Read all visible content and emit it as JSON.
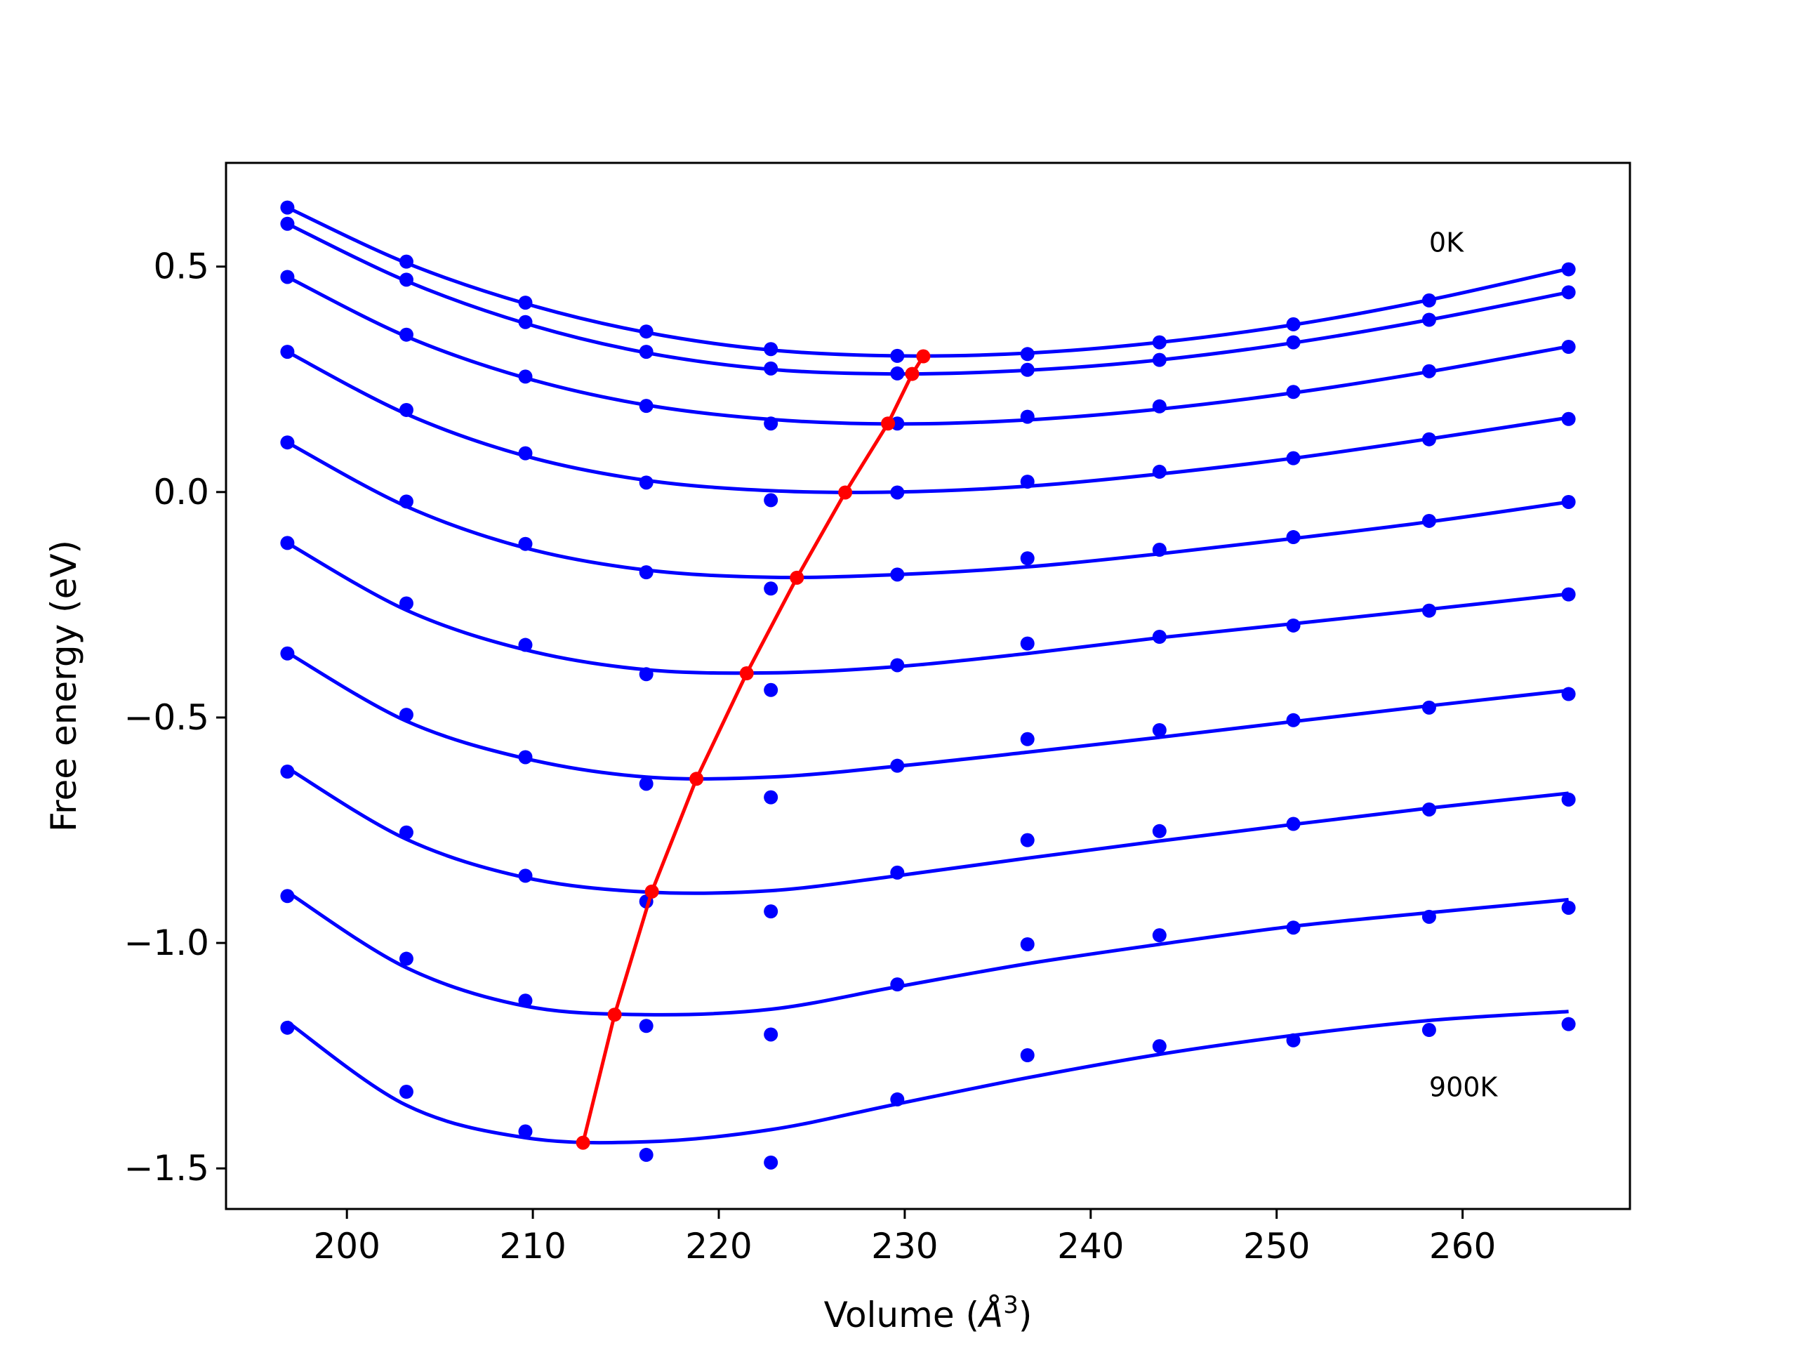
{
  "chart_data": {
    "type": "line",
    "title": "",
    "xlabel": "Volume (Å³)",
    "xlabel_parts": {
      "prefix": "Volume (",
      "symbol": "Å",
      "exponent": "3",
      "suffix": ")"
    },
    "ylabel": "Free energy (eV)",
    "xlim": [
      193.5,
      269
    ],
    "ylim": [
      -1.59,
      0.73
    ],
    "xticks": [
      200,
      210,
      220,
      230,
      240,
      250,
      260
    ],
    "xtick_labels": [
      "200",
      "210",
      "220",
      "230",
      "240",
      "250",
      "260"
    ],
    "yticks": [
      0.5,
      0.0,
      -0.5,
      -1.0,
      -1.5
    ],
    "ytick_labels": [
      "0.5",
      "0.0",
      "−0.5",
      "−1.0",
      "−1.5"
    ],
    "grid": false,
    "legend": "none",
    "annotations": [
      {
        "text": "0K",
        "x": 258.2,
        "y": 0.555
      },
      {
        "text": "900K",
        "x": 258.2,
        "y": -1.318
      }
    ],
    "x": [
      196.8,
      203.2,
      209.6,
      216.1,
      222.8,
      229.6,
      236.6,
      243.7,
      250.9,
      258.2,
      265.7
    ],
    "colors": {
      "points": "#0000ff",
      "fits": "#0000ff",
      "minima": "#ff0000"
    },
    "series": [
      {
        "points": [
          0.631,
          0.511,
          0.42,
          0.356,
          0.317,
          0.302,
          0.306,
          0.332,
          0.372,
          0.425,
          0.494
        ],
        "fit": [
          [
            196.8,
            0.631
          ],
          [
            203.2,
            0.508
          ],
          [
            209.6,
            0.418
          ],
          [
            216.1,
            0.354
          ],
          [
            222.8,
            0.315
          ],
          [
            229.6,
            0.302
          ],
          [
            236.6,
            0.308
          ],
          [
            243.7,
            0.332
          ],
          [
            250.9,
            0.371
          ],
          [
            258.2,
            0.426
          ],
          [
            265.7,
            0.495
          ]
        ]
      },
      {
        "points": [
          0.595,
          0.471,
          0.377,
          0.311,
          0.274,
          0.263,
          0.271,
          0.293,
          0.332,
          0.382,
          0.443
        ],
        "fit": [
          [
            196.8,
            0.595
          ],
          [
            203.2,
            0.468
          ],
          [
            209.6,
            0.374
          ],
          [
            216.1,
            0.309
          ],
          [
            222.8,
            0.272
          ],
          [
            229.6,
            0.262
          ],
          [
            236.6,
            0.27
          ],
          [
            243.7,
            0.293
          ],
          [
            250.9,
            0.331
          ],
          [
            258.2,
            0.382
          ],
          [
            265.7,
            0.443
          ]
        ]
      },
      {
        "points": [
          0.477,
          0.349,
          0.256,
          0.191,
          0.152,
          0.152,
          0.167,
          0.19,
          0.222,
          0.268,
          0.322
        ],
        "fit": [
          [
            196.8,
            0.477
          ],
          [
            203.2,
            0.345
          ],
          [
            209.6,
            0.253
          ],
          [
            216.1,
            0.193
          ],
          [
            222.8,
            0.161
          ],
          [
            229.6,
            0.151
          ],
          [
            236.6,
            0.16
          ],
          [
            243.7,
            0.184
          ],
          [
            250.9,
            0.22
          ],
          [
            258.2,
            0.267
          ],
          [
            265.7,
            0.323
          ]
        ]
      },
      {
        "points": [
          0.311,
          0.182,
          0.086,
          0.021,
          -0.018,
          -0.001,
          0.023,
          0.045,
          0.075,
          0.117,
          0.162
        ],
        "fit": [
          [
            196.8,
            0.311
          ],
          [
            203.2,
            0.173
          ],
          [
            209.6,
            0.08
          ],
          [
            216.1,
            0.026
          ],
          [
            222.8,
            0.003
          ],
          [
            229.6,
            0.0
          ],
          [
            236.6,
            0.013
          ],
          [
            243.7,
            0.04
          ],
          [
            250.9,
            0.075
          ],
          [
            258.2,
            0.118
          ],
          [
            265.7,
            0.165
          ]
        ]
      },
      {
        "points": [
          0.11,
          -0.021,
          -0.115,
          -0.178,
          -0.214,
          -0.183,
          -0.147,
          -0.128,
          -0.1,
          -0.064,
          -0.022
        ],
        "fit": [
          [
            196.8,
            0.11
          ],
          [
            203.2,
            -0.032
          ],
          [
            209.6,
            -0.124
          ],
          [
            216.1,
            -0.173
          ],
          [
            222.8,
            -0.189
          ],
          [
            229.6,
            -0.183
          ],
          [
            236.6,
            -0.166
          ],
          [
            243.7,
            -0.137
          ],
          [
            250.9,
            -0.103
          ],
          [
            258.2,
            -0.066
          ],
          [
            265.7,
            -0.022
          ]
        ]
      },
      {
        "points": [
          -0.113,
          -0.247,
          -0.339,
          -0.404,
          -0.439,
          -0.384,
          -0.336,
          -0.321,
          -0.296,
          -0.263,
          -0.227
        ],
        "fit": [
          [
            196.8,
            -0.113
          ],
          [
            203.2,
            -0.262
          ],
          [
            209.6,
            -0.35
          ],
          [
            216.1,
            -0.394
          ],
          [
            222.8,
            -0.401
          ],
          [
            229.6,
            -0.387
          ],
          [
            236.6,
            -0.358
          ],
          [
            243.7,
            -0.323
          ],
          [
            250.9,
            -0.292
          ],
          [
            258.2,
            -0.26
          ],
          [
            265.7,
            -0.226
          ]
        ]
      },
      {
        "points": [
          -0.358,
          -0.494,
          -0.588,
          -0.647,
          -0.677,
          -0.607,
          -0.548,
          -0.528,
          -0.506,
          -0.478,
          -0.448
        ],
        "fit": [
          [
            196.8,
            -0.356
          ],
          [
            203.2,
            -0.508
          ],
          [
            209.6,
            -0.591
          ],
          [
            216.1,
            -0.632
          ],
          [
            222.8,
            -0.632
          ],
          [
            229.6,
            -0.608
          ],
          [
            236.6,
            -0.577
          ],
          [
            243.7,
            -0.544
          ],
          [
            250.9,
            -0.509
          ],
          [
            258.2,
            -0.474
          ],
          [
            265.7,
            -0.44
          ]
        ]
      },
      {
        "points": [
          -0.62,
          -0.755,
          -0.851,
          -0.908,
          -0.93,
          -0.844,
          -0.772,
          -0.752,
          -0.736,
          -0.704,
          -0.682
        ],
        "fit": [
          [
            196.8,
            -0.612
          ],
          [
            203.2,
            -0.77
          ],
          [
            209.6,
            -0.855
          ],
          [
            216.1,
            -0.887
          ],
          [
            222.8,
            -0.884
          ],
          [
            229.6,
            -0.851
          ],
          [
            236.6,
            -0.812
          ],
          [
            243.7,
            -0.774
          ],
          [
            250.9,
            -0.737
          ],
          [
            258.2,
            -0.701
          ],
          [
            265.7,
            -0.668
          ]
        ]
      },
      {
        "points": [
          -0.896,
          -1.035,
          -1.128,
          -1.184,
          -1.203,
          -1.092,
          -1.003,
          -0.983,
          -0.966,
          -0.942,
          -0.922
        ],
        "fit": [
          [
            196.8,
            -0.887
          ],
          [
            203.2,
            -1.055
          ],
          [
            209.6,
            -1.14
          ],
          [
            216.1,
            -1.159
          ],
          [
            222.8,
            -1.147
          ],
          [
            229.6,
            -1.097
          ],
          [
            236.6,
            -1.046
          ],
          [
            243.7,
            -1.003
          ],
          [
            250.9,
            -0.963
          ],
          [
            258.2,
            -0.933
          ],
          [
            265.7,
            -0.904
          ]
        ]
      },
      {
        "points": [
          -1.188,
          -1.33,
          -1.418,
          -1.47,
          -1.487,
          -1.347,
          -1.249,
          -1.229,
          -1.216,
          -1.193,
          -1.18
        ],
        "fit": [
          [
            196.8,
            -1.175
          ],
          [
            203.2,
            -1.36
          ],
          [
            209.6,
            -1.432
          ],
          [
            216.1,
            -1.441
          ],
          [
            222.8,
            -1.414
          ],
          [
            229.6,
            -1.357
          ],
          [
            236.6,
            -1.299
          ],
          [
            243.7,
            -1.247
          ],
          [
            250.9,
            -1.205
          ],
          [
            258.2,
            -1.172
          ],
          [
            265.7,
            -1.152
          ]
        ]
      }
    ],
    "minima": {
      "x": [
        231.0,
        230.4,
        229.1,
        226.8,
        224.2,
        221.5,
        218.8,
        216.4,
        214.4,
        212.7
      ],
      "y": [
        0.301,
        0.262,
        0.152,
        -0.001,
        -0.19,
        -0.402,
        -0.636,
        -0.886,
        -1.159,
        -1.443
      ]
    }
  }
}
